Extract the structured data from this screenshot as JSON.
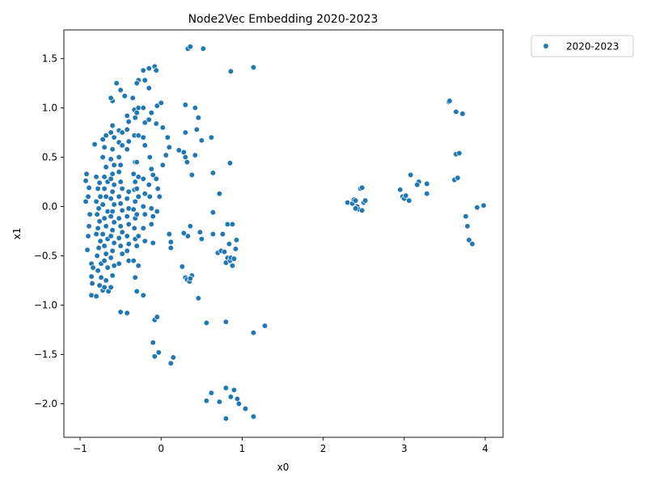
{
  "chart_data": {
    "type": "scatter",
    "title": "Node2Vec Embedding 2020-2023",
    "xlabel": "x0",
    "ylabel": "x1",
    "xlim": [
      -1.2,
      4.22
    ],
    "ylim": [
      -2.34,
      1.79
    ],
    "xticks": [
      -1,
      0,
      1,
      2,
      3,
      4
    ],
    "yticks": [
      -2.0,
      -1.5,
      -1.0,
      -0.5,
      0.0,
      0.5,
      1.0,
      1.5
    ],
    "xtick_labels": [
      "−1",
      "0",
      "1",
      "2",
      "3",
      "4"
    ],
    "ytick_labels": [
      "−2.0",
      "−1.5",
      "−1.0",
      "−0.5",
      "0.0",
      "0.5",
      "1.0",
      "1.5"
    ],
    "grid": false,
    "legend_position": "outside-top-right",
    "series": [
      {
        "name": "2020-2023",
        "color": "#1f77b4",
        "points": [
          [
            -0.82,
            0.63
          ],
          [
            -0.92,
            0.33
          ],
          [
            -0.93,
            0.26
          ],
          [
            -0.89,
            0.19
          ],
          [
            -0.9,
            0.1
          ],
          [
            -0.93,
            0.05
          ],
          [
            -0.88,
            -0.08
          ],
          [
            -0.89,
            -0.2
          ],
          [
            -0.9,
            -0.3
          ],
          [
            -0.91,
            -0.44
          ],
          [
            -0.86,
            -0.58
          ],
          [
            -0.84,
            -0.62
          ],
          [
            -0.86,
            -0.71
          ],
          [
            -0.85,
            -0.78
          ],
          [
            -0.86,
            -0.9
          ],
          [
            -0.8,
            0.3
          ],
          [
            -0.76,
            0.24
          ],
          [
            -0.78,
            0.18
          ],
          [
            -0.75,
            0.1
          ],
          [
            -0.8,
            0.05
          ],
          [
            -0.77,
            -0.02
          ],
          [
            -0.79,
            -0.08
          ],
          [
            -0.76,
            -0.15
          ],
          [
            -0.78,
            -0.22
          ],
          [
            -0.8,
            -0.28
          ],
          [
            -0.75,
            -0.35
          ],
          [
            -0.77,
            -0.42
          ],
          [
            -0.79,
            -0.5
          ],
          [
            -0.74,
            -0.58
          ],
          [
            -0.78,
            -0.65
          ],
          [
            -0.74,
            -0.72
          ],
          [
            -0.76,
            -0.8
          ],
          [
            -0.72,
            -0.85
          ],
          [
            -0.8,
            -0.91
          ],
          [
            -0.72,
            0.68
          ],
          [
            -0.68,
            0.72
          ],
          [
            -0.7,
            0.6
          ],
          [
            -0.72,
            0.5
          ],
          [
            -0.68,
            0.4
          ],
          [
            -0.7,
            0.3
          ],
          [
            -0.66,
            0.25
          ],
          [
            -0.7,
            0.18
          ],
          [
            -0.68,
            0.1
          ],
          [
            -0.72,
            0.02
          ],
          [
            -0.66,
            -0.05
          ],
          [
            -0.7,
            -0.12
          ],
          [
            -0.68,
            -0.2
          ],
          [
            -0.72,
            -0.28
          ],
          [
            -0.66,
            -0.33
          ],
          [
            -0.7,
            -0.4
          ],
          [
            -0.68,
            -0.48
          ],
          [
            -0.7,
            -0.55
          ],
          [
            -0.66,
            -0.62
          ],
          [
            -0.68,
            -0.75
          ],
          [
            -0.7,
            -0.82
          ],
          [
            -0.65,
            -0.86
          ],
          [
            -0.6,
            0.82
          ],
          [
            -0.62,
            0.75
          ],
          [
            -0.58,
            0.7
          ],
          [
            -0.6,
            0.58
          ],
          [
            -0.62,
            0.48
          ],
          [
            -0.58,
            0.42
          ],
          [
            -0.6,
            0.33
          ],
          [
            -0.62,
            0.28
          ],
          [
            -0.58,
            0.22
          ],
          [
            -0.6,
            0.15
          ],
          [
            -0.62,
            0.08
          ],
          [
            -0.58,
            0.02
          ],
          [
            -0.6,
            -0.05
          ],
          [
            -0.62,
            -0.1
          ],
          [
            -0.58,
            -0.16
          ],
          [
            -0.6,
            -0.24
          ],
          [
            -0.62,
            -0.3
          ],
          [
            -0.58,
            -0.37
          ],
          [
            -0.6,
            -0.45
          ],
          [
            -0.62,
            -0.52
          ],
          [
            -0.58,
            -0.6
          ],
          [
            -0.6,
            -0.7
          ],
          [
            -0.62,
            -0.82
          ],
          [
            -0.52,
            0.77
          ],
          [
            -0.48,
            0.75
          ],
          [
            -0.52,
            0.65
          ],
          [
            -0.48,
            0.62
          ],
          [
            -0.52,
            0.5
          ],
          [
            -0.5,
            0.42
          ],
          [
            -0.52,
            0.35
          ],
          [
            -0.5,
            0.25
          ],
          [
            -0.48,
            0.18
          ],
          [
            -0.52,
            0.1
          ],
          [
            -0.5,
            0.03
          ],
          [
            -0.48,
            -0.04
          ],
          [
            -0.52,
            -0.12
          ],
          [
            -0.5,
            -0.2
          ],
          [
            -0.48,
            -0.26
          ],
          [
            -0.52,
            -0.32
          ],
          [
            -0.5,
            -0.4
          ],
          [
            -0.48,
            -0.48
          ],
          [
            -0.52,
            -0.58
          ],
          [
            -0.42,
            0.92
          ],
          [
            -0.4,
            0.86
          ],
          [
            -0.42,
            0.78
          ],
          [
            -0.4,
            0.66
          ],
          [
            -0.42,
            0.58
          ],
          [
            -0.4,
            0.15
          ],
          [
            -0.42,
            0.08
          ],
          [
            -0.4,
            -0.02
          ],
          [
            -0.42,
            -0.1
          ],
          [
            -0.4,
            -0.18
          ],
          [
            -0.42,
            -0.3
          ],
          [
            -0.4,
            -0.38
          ],
          [
            -0.42,
            -0.45
          ],
          [
            -0.4,
            -0.55
          ],
          [
            -0.33,
            0.98
          ],
          [
            -0.32,
            0.9
          ],
          [
            -0.33,
            0.72
          ],
          [
            -0.32,
            0.45
          ],
          [
            -0.34,
            0.33
          ],
          [
            -0.32,
            0.25
          ],
          [
            -0.33,
            0.17
          ],
          [
            -0.32,
            0.05
          ],
          [
            -0.34,
            -0.03
          ],
          [
            -0.32,
            -0.12
          ],
          [
            -0.33,
            -0.22
          ],
          [
            -0.32,
            -0.33
          ],
          [
            -0.34,
            -0.55
          ],
          [
            -0.32,
            -0.72
          ],
          [
            -0.28,
            1.28
          ],
          [
            -0.3,
            1.25
          ],
          [
            -0.28,
            1.0
          ],
          [
            -0.3,
            0.95
          ],
          [
            -0.28,
            0.72
          ],
          [
            -0.3,
            0.45
          ],
          [
            -0.28,
            0.3
          ],
          [
            -0.3,
            0.18
          ],
          [
            -0.28,
            0.1
          ],
          [
            -0.3,
            -0.08
          ],
          [
            -0.28,
            -0.3
          ],
          [
            -0.3,
            -0.4
          ],
          [
            -0.28,
            -0.6
          ],
          [
            -0.3,
            -0.86
          ],
          [
            -0.22,
            1.38
          ],
          [
            -0.2,
            1.28
          ],
          [
            -0.22,
            1.0
          ],
          [
            -0.2,
            0.85
          ],
          [
            -0.22,
            0.7
          ],
          [
            -0.2,
            0.62
          ],
          [
            -0.22,
            0.28
          ],
          [
            -0.2,
            0.13
          ],
          [
            -0.22,
            0.0
          ],
          [
            -0.2,
            -0.08
          ],
          [
            -0.22,
            -0.22
          ],
          [
            -0.2,
            -0.35
          ],
          [
            -0.22,
            -0.9
          ],
          [
            -0.15,
            1.4
          ],
          [
            -0.15,
            1.2
          ],
          [
            -0.12,
            0.95
          ],
          [
            -0.15,
            0.88
          ],
          [
            -0.14,
            0.5
          ],
          [
            -0.12,
            0.38
          ],
          [
            -0.1,
            0.32
          ],
          [
            -0.15,
            0.22
          ],
          [
            -0.14,
            0.1
          ],
          [
            -0.12,
            -0.02
          ],
          [
            -0.1,
            -0.1
          ],
          [
            -0.12,
            -0.18
          ],
          [
            -0.1,
            -0.37
          ],
          [
            -0.08,
            1.42
          ],
          [
            -0.06,
            1.38
          ],
          [
            -0.05,
            1.02
          ],
          [
            -0.06,
            0.84
          ],
          [
            -0.06,
            0.28
          ],
          [
            -0.04,
            0.18
          ],
          [
            -0.02,
            0.1
          ],
          [
            -0.05,
            -0.05
          ],
          [
            -0.08,
            -1.15
          ],
          [
            -0.05,
            -1.12
          ],
          [
            -0.1,
            -1.38
          ],
          [
            -0.08,
            -1.52
          ],
          [
            -0.03,
            -1.48
          ],
          [
            -0.5,
            -1.07
          ],
          [
            -0.42,
            -1.08
          ],
          [
            -0.55,
            1.25
          ],
          [
            -0.5,
            1.18
          ],
          [
            -0.45,
            1.12
          ],
          [
            -0.35,
            1.1
          ],
          [
            -0.6,
            1.07
          ],
          [
            -0.62,
            1.1
          ],
          [
            0.0,
            1.05
          ],
          [
            0.02,
            0.8
          ],
          [
            0.08,
            0.7
          ],
          [
            0.1,
            0.6
          ],
          [
            0.06,
            0.52
          ],
          [
            0.02,
            0.42
          ],
          [
            0.1,
            -0.28
          ],
          [
            0.12,
            -0.36
          ],
          [
            0.12,
            -0.42
          ],
          [
            0.15,
            -1.53
          ],
          [
            0.12,
            -1.59
          ],
          [
            0.22,
            0.57
          ],
          [
            0.28,
            0.55
          ],
          [
            0.3,
            0.5
          ],
          [
            0.32,
            0.45
          ],
          [
            0.3,
            1.03
          ],
          [
            0.3,
            0.75
          ],
          [
            0.33,
            1.6
          ],
          [
            0.36,
            1.62
          ],
          [
            0.38,
            0.32
          ],
          [
            0.36,
            -0.2
          ],
          [
            0.33,
            -0.3
          ],
          [
            0.28,
            -0.27
          ],
          [
            0.42,
            1.0
          ],
          [
            0.44,
            0.78
          ],
          [
            0.46,
            0.9
          ],
          [
            0.42,
            0.52
          ],
          [
            0.5,
            0.67
          ],
          [
            0.52,
            1.6
          ],
          [
            0.48,
            -0.26
          ],
          [
            0.5,
            -0.33
          ],
          [
            0.46,
            -0.93
          ],
          [
            0.26,
            -0.61
          ],
          [
            0.3,
            -0.72
          ],
          [
            0.32,
            -0.74
          ],
          [
            0.35,
            -0.76
          ],
          [
            0.38,
            -0.7
          ],
          [
            0.36,
            -0.73
          ],
          [
            0.56,
            -1.18
          ],
          [
            0.62,
            0.7
          ],
          [
            0.64,
            0.34
          ],
          [
            0.64,
            -0.06
          ],
          [
            0.64,
            -0.28
          ],
          [
            0.72,
            0.13
          ],
          [
            0.7,
            -0.47
          ],
          [
            0.74,
            -0.45
          ],
          [
            0.78,
            -0.46
          ],
          [
            0.8,
            -0.57
          ],
          [
            0.82,
            -0.52
          ],
          [
            0.85,
            -0.55
          ],
          [
            0.88,
            -0.6
          ],
          [
            0.86,
            -0.52
          ],
          [
            0.9,
            -0.53
          ],
          [
            0.92,
            -0.43
          ],
          [
            0.93,
            -0.34
          ],
          [
            0.84,
            -0.38
          ],
          [
            0.82,
            -0.18
          ],
          [
            0.88,
            -0.18
          ],
          [
            0.76,
            -0.28
          ],
          [
            0.85,
            0.44
          ],
          [
            0.86,
            1.37
          ],
          [
            1.14,
            1.41
          ],
          [
            0.8,
            -1.17
          ],
          [
            1.14,
            -1.28
          ],
          [
            1.28,
            -1.21
          ],
          [
            0.56,
            -1.97
          ],
          [
            0.62,
            -1.89
          ],
          [
            0.72,
            -1.98
          ],
          [
            0.8,
            -1.84
          ],
          [
            0.8,
            -2.15
          ],
          [
            0.86,
            -1.93
          ],
          [
            0.9,
            -1.86
          ],
          [
            0.94,
            -1.95
          ],
          [
            0.96,
            -2.0
          ],
          [
            1.04,
            -2.05
          ],
          [
            1.14,
            -2.13
          ],
          [
            2.3,
            0.04
          ],
          [
            2.36,
            0.03
          ],
          [
            2.38,
            0.07
          ],
          [
            2.4,
            0.06
          ],
          [
            2.42,
            0.0
          ],
          [
            2.44,
            -0.03
          ],
          [
            2.46,
            0.18
          ],
          [
            2.48,
            0.19
          ],
          [
            2.48,
            -0.04
          ],
          [
            2.5,
            0.04
          ],
          [
            2.52,
            0.06
          ],
          [
            2.4,
            -0.02
          ],
          [
            2.95,
            0.17
          ],
          [
            2.98,
            0.1
          ],
          [
            3.0,
            0.08
          ],
          [
            3.02,
            0.11
          ],
          [
            3.06,
            0.06
          ],
          [
            3.08,
            0.32
          ],
          [
            3.18,
            0.25
          ],
          [
            3.16,
            0.22
          ],
          [
            3.28,
            0.23
          ],
          [
            3.28,
            0.13
          ],
          [
            3.55,
            1.06
          ],
          [
            3.56,
            1.07
          ],
          [
            3.64,
            0.96
          ],
          [
            3.72,
            0.94
          ],
          [
            3.64,
            0.53
          ],
          [
            3.68,
            0.54
          ],
          [
            3.62,
            0.27
          ],
          [
            3.66,
            0.29
          ],
          [
            3.76,
            -0.1
          ],
          [
            3.78,
            -0.2
          ],
          [
            3.8,
            -0.34
          ],
          [
            3.84,
            -0.38
          ],
          [
            3.9,
            -0.01
          ],
          [
            3.98,
            0.01
          ]
        ]
      }
    ]
  }
}
